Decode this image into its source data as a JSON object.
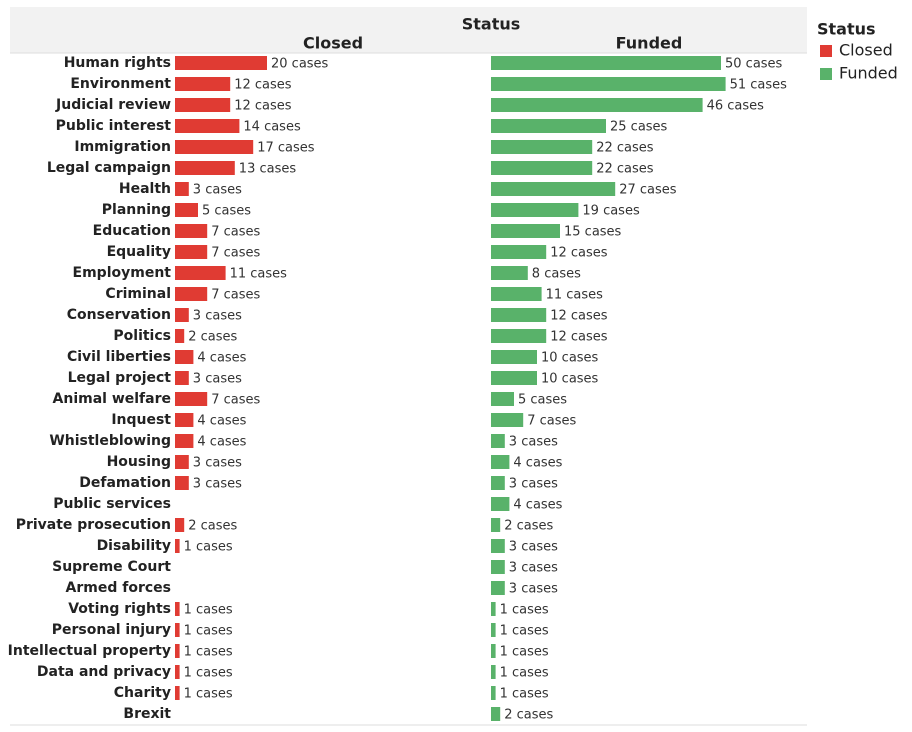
{
  "chart_data": {
    "type": "bar",
    "orientation": "horizontal",
    "title": "Status",
    "categories": [
      "Human rights",
      "Environment",
      "Judicial review",
      "Public interest",
      "Immigration",
      "Legal campaign",
      "Health",
      "Planning",
      "Education",
      "Equality",
      "Employment",
      "Criminal",
      "Conservation",
      "Politics",
      "Civil liberties",
      "Legal project",
      "Animal welfare",
      "Inquest",
      "Whistleblowing",
      "Housing",
      "Defamation",
      "Public services",
      "Private prosecution",
      "Disability",
      "Supreme Court",
      "Armed forces",
      "Voting rights",
      "Personal injury",
      "Intellectual property",
      "Data and privacy",
      "Charity",
      "Brexit"
    ],
    "series": [
      {
        "name": "Closed",
        "color": "#e03b33",
        "values": [
          20,
          12,
          12,
          14,
          17,
          13,
          3,
          5,
          7,
          7,
          11,
          7,
          3,
          2,
          4,
          3,
          7,
          4,
          4,
          3,
          3,
          null,
          2,
          1,
          null,
          null,
          1,
          1,
          1,
          1,
          1,
          null
        ],
        "value_labels": [
          "20 cases",
          "12 cases",
          "12 cases",
          "14 cases",
          "17 cases",
          "13 cases",
          "3 cases",
          "5 cases",
          "7 cases",
          "7 cases",
          "11 cases",
          "7 cases",
          "3 cases",
          "2 cases",
          "4 cases",
          "3 cases",
          "7 cases",
          "4 cases",
          "4 cases",
          "3 cases",
          "3 cases",
          null,
          "2 cases",
          "1 cases",
          null,
          null,
          "1 cases",
          "1 cases",
          "1 cases",
          "1 cases",
          "1 cases",
          null
        ]
      },
      {
        "name": "Funded",
        "color": "#59b26a",
        "values": [
          50,
          51,
          46,
          25,
          22,
          22,
          27,
          19,
          15,
          12,
          8,
          11,
          12,
          12,
          10,
          10,
          5,
          7,
          3,
          4,
          3,
          4,
          2,
          3,
          3,
          3,
          1,
          1,
          1,
          1,
          1,
          2
        ],
        "value_labels": [
          "50 cases",
          "51 cases",
          "46 cases",
          "25 cases",
          "22 cases",
          "22 cases",
          "27 cases",
          "19 cases",
          "15 cases",
          "12 cases",
          "8 cases",
          "11 cases",
          "12 cases",
          "12 cases",
          "10 cases",
          "10 cases",
          "5 cases",
          "7 cases",
          "3 cases",
          "4 cases",
          "3 cases",
          "4 cases",
          "2 cases",
          "3 cases",
          "3 cases",
          "3 cases",
          "1 cases",
          "1 cases",
          "1 cases",
          "1 cases",
          "1 cases",
          "2 cases"
        ]
      }
    ]
  }
}
